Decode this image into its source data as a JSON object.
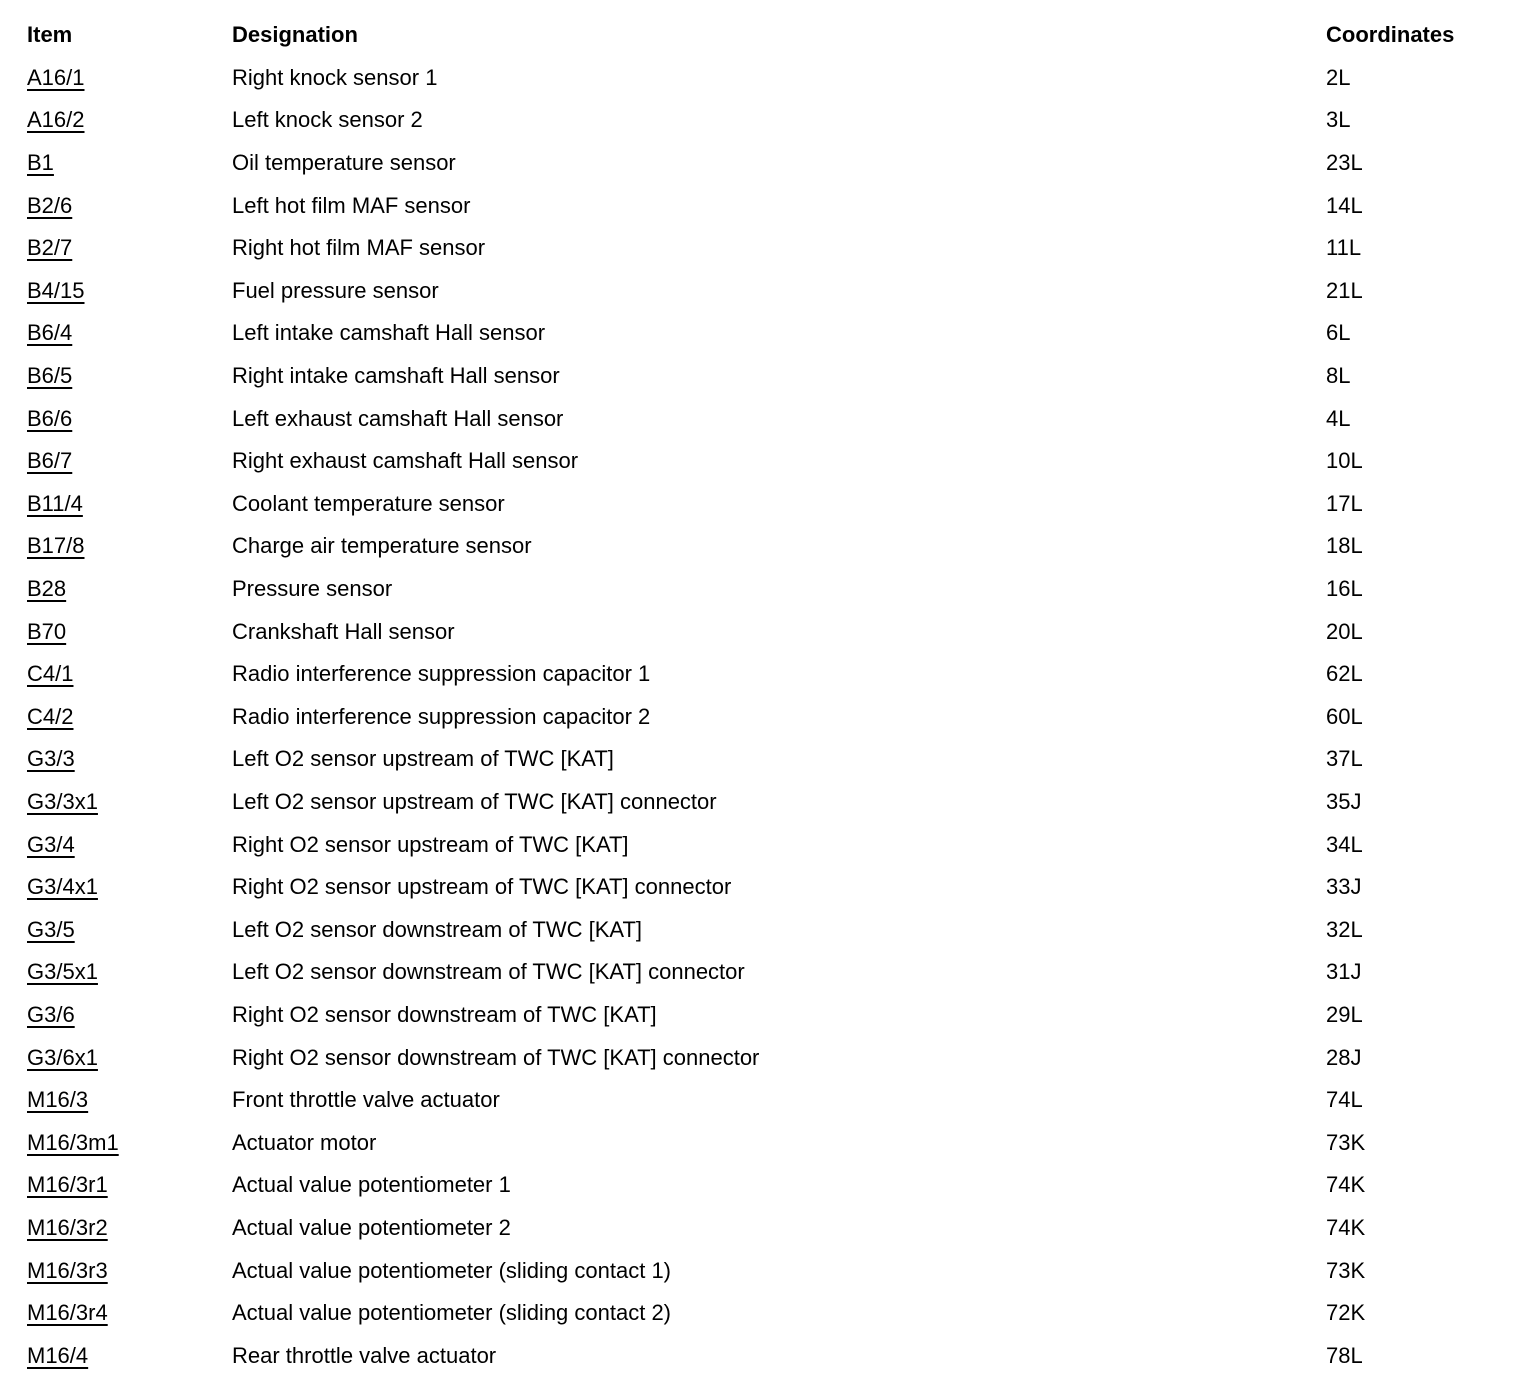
{
  "table": {
    "columns": [
      "Item",
      "Designation",
      "Coordinates"
    ],
    "rows": [
      {
        "item": "A16/1",
        "designation": "Right knock sensor 1",
        "coordinates": "2L"
      },
      {
        "item": "A16/2",
        "designation": "Left knock sensor 2",
        "coordinates": "3L"
      },
      {
        "item": "B1",
        "designation": "Oil temperature sensor",
        "coordinates": "23L"
      },
      {
        "item": "B2/6",
        "designation": "Left hot film MAF sensor",
        "coordinates": "14L"
      },
      {
        "item": "B2/7",
        "designation": "Right hot film MAF sensor",
        "coordinates": "11L"
      },
      {
        "item": "B4/15",
        "designation": "Fuel pressure sensor",
        "coordinates": "21L"
      },
      {
        "item": "B6/4",
        "designation": "Left intake camshaft Hall sensor",
        "coordinates": "6L"
      },
      {
        "item": "B6/5",
        "designation": "Right intake camshaft Hall sensor",
        "coordinates": "8L"
      },
      {
        "item": "B6/6",
        "designation": "Left exhaust camshaft Hall sensor",
        "coordinates": "4L"
      },
      {
        "item": "B6/7",
        "designation": "Right exhaust camshaft Hall sensor",
        "coordinates": "10L"
      },
      {
        "item": "B11/4",
        "designation": "Coolant temperature sensor",
        "coordinates": "17L"
      },
      {
        "item": "B17/8",
        "designation": "Charge air temperature sensor",
        "coordinates": "18L"
      },
      {
        "item": "B28",
        "designation": "Pressure sensor",
        "coordinates": "16L"
      },
      {
        "item": "B70",
        "designation": "Crankshaft Hall sensor",
        "coordinates": "20L"
      },
      {
        "item": "C4/1",
        "designation": "Radio interference suppression capacitor 1",
        "coordinates": "62L"
      },
      {
        "item": "C4/2",
        "designation": "Radio interference suppression capacitor 2",
        "coordinates": "60L"
      },
      {
        "item": "G3/3",
        "designation": "Left O2 sensor upstream of TWC [KAT]",
        "coordinates": "37L"
      },
      {
        "item": "G3/3x1",
        "designation": "Left O2 sensor upstream of TWC [KAT] connector",
        "coordinates": "35J"
      },
      {
        "item": "G3/4",
        "designation": "Right O2 sensor upstream of TWC [KAT]",
        "coordinates": "34L"
      },
      {
        "item": "G3/4x1",
        "designation": "Right O2 sensor upstream of TWC [KAT] connector",
        "coordinates": "33J"
      },
      {
        "item": "G3/5",
        "designation": "Left O2 sensor downstream of TWC [KAT]",
        "coordinates": "32L"
      },
      {
        "item": "G3/5x1",
        "designation": "Left O2 sensor downstream of TWC [KAT] connector",
        "coordinates": "31J"
      },
      {
        "item": "G3/6",
        "designation": "Right O2 sensor downstream of TWC [KAT]",
        "coordinates": "29L"
      },
      {
        "item": "G3/6x1",
        "designation": "Right O2 sensor downstream of TWC [KAT] connector",
        "coordinates": "28J"
      },
      {
        "item": "M16/3",
        "designation": "Front throttle valve actuator",
        "coordinates": "74L"
      },
      {
        "item": "M16/3m1",
        "designation": "Actuator motor",
        "coordinates": "73K"
      },
      {
        "item": "M16/3r1",
        "designation": "Actual value potentiometer 1",
        "coordinates": "74K"
      },
      {
        "item": "M16/3r2",
        "designation": "Actual value potentiometer 2",
        "coordinates": "74K"
      },
      {
        "item": "M16/3r3",
        "designation": "Actual value potentiometer (sliding contact 1)",
        "coordinates": "73K"
      },
      {
        "item": "M16/3r4",
        "designation": "Actual value potentiometer (sliding contact 2)",
        "coordinates": "72K"
      },
      {
        "item": "M16/4",
        "designation": "Rear throttle valve actuator",
        "coordinates": "78L"
      }
    ]
  }
}
